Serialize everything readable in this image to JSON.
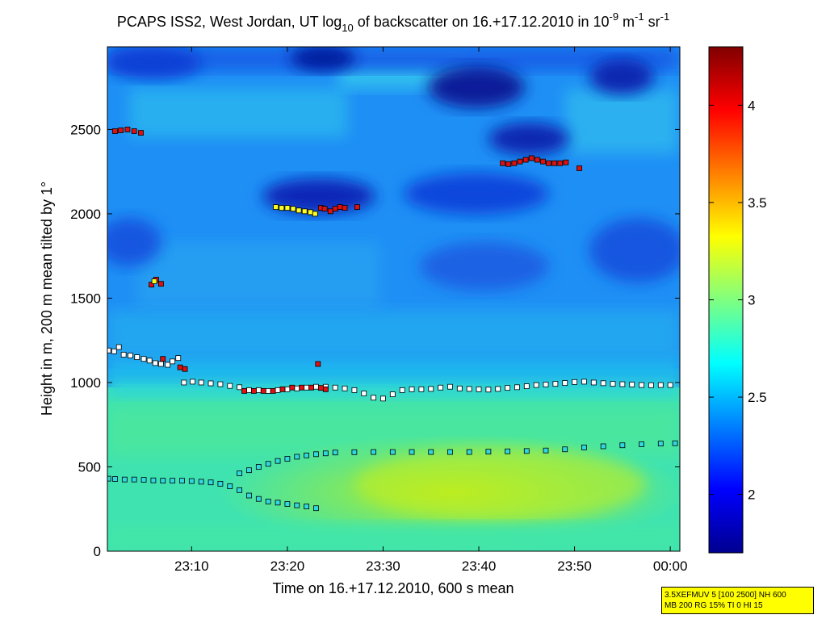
{
  "chart_data": {
    "type": "heatmap",
    "title": {
      "main": "PCAPS ISS2, West Jordan, UT log",
      "sub": "10",
      "middle": " of backscatter on 16.+17.12.2010 in 10",
      "exp1": "-9",
      "unit1": " m",
      "exp2": "-1",
      "unit2": " sr",
      "exp3": "-1"
    },
    "xlabel": "Time on 16.+17.12.2010, 600 s mean",
    "ylabel": "Height in m, 200 m mean tilted by 1°",
    "x_ticks": [
      "23:10",
      "23:20",
      "23:30",
      "23:40",
      "23:50",
      "00:00"
    ],
    "x_tick_minutes": [
      70,
      80,
      90,
      100,
      110,
      120
    ],
    "xlim_minutes": [
      61.2,
      121.0
    ],
    "y_ticks": [
      0,
      500,
      1000,
      1500,
      2000,
      2500
    ],
    "ylim": [
      0,
      2990
    ],
    "colorbar": {
      "ticks": [
        "2",
        "2.5",
        "3",
        "3.5",
        "4"
      ],
      "tick_values": [
        2,
        2.5,
        3,
        3.5,
        4
      ],
      "range": [
        1.7,
        4.3
      ],
      "colormap": "jet"
    },
    "series": [
      {
        "marker": "white-square",
        "points": [
          [
            61.3,
            1190
          ],
          [
            61.9,
            1185
          ],
          [
            62.4,
            1210
          ],
          [
            62.9,
            1165
          ],
          [
            63.6,
            1160
          ],
          [
            64.3,
            1150
          ],
          [
            65.0,
            1140
          ],
          [
            65.6,
            1130
          ],
          [
            66.2,
            1115
          ],
          [
            66.8,
            1110
          ],
          [
            67.5,
            1105
          ],
          [
            68.0,
            1125
          ],
          [
            68.6,
            1145
          ],
          [
            69.2,
            1000
          ],
          [
            70.1,
            1005
          ],
          [
            71.0,
            1000
          ],
          [
            72.0,
            995
          ],
          [
            73.0,
            990
          ],
          [
            74.0,
            980
          ],
          [
            75.0,
            972
          ],
          [
            76.0,
            955
          ],
          [
            77.0,
            955
          ],
          [
            78.0,
            950
          ],
          [
            79.0,
            955
          ],
          [
            80.0,
            960
          ],
          [
            81.0,
            965
          ],
          [
            82.0,
            970
          ],
          [
            83.0,
            975
          ],
          [
            84.0,
            975
          ],
          [
            85.0,
            970
          ],
          [
            86.0,
            965
          ],
          [
            87.0,
            955
          ],
          [
            88.0,
            935
          ],
          [
            89.0,
            910
          ],
          [
            90.0,
            905
          ],
          [
            91.0,
            930
          ],
          [
            92.0,
            955
          ],
          [
            93.0,
            960
          ],
          [
            94.0,
            960
          ],
          [
            95.0,
            962
          ],
          [
            96.0,
            970
          ],
          [
            97.0,
            975
          ],
          [
            98.0,
            965
          ],
          [
            99.0,
            962
          ],
          [
            100.0,
            960
          ],
          [
            101.0,
            958
          ],
          [
            102.0,
            962
          ],
          [
            103.0,
            968
          ],
          [
            104.0,
            972
          ],
          [
            105.0,
            978
          ],
          [
            106.0,
            985
          ],
          [
            107.0,
            988
          ],
          [
            108.0,
            992
          ],
          [
            109.0,
            997
          ],
          [
            110.0,
            1003
          ],
          [
            111.0,
            1005
          ],
          [
            112.0,
            1000
          ],
          [
            113.0,
            996
          ],
          [
            114.0,
            992
          ],
          [
            115.0,
            990
          ],
          [
            116.0,
            988
          ],
          [
            117.0,
            985
          ],
          [
            118.0,
            984
          ],
          [
            119.0,
            985
          ],
          [
            120.0,
            985
          ]
        ]
      },
      {
        "marker": "red-square",
        "points": [
          [
            62.0,
            2490
          ],
          [
            62.6,
            2495
          ],
          [
            63.3,
            2500
          ],
          [
            64.0,
            2490
          ],
          [
            64.7,
            2480
          ],
          [
            65.8,
            1580
          ],
          [
            66.3,
            1610
          ],
          [
            66.8,
            1585
          ],
          [
            67.0,
            1140
          ],
          [
            68.8,
            1090
          ],
          [
            69.3,
            1080
          ],
          [
            75.5,
            950
          ],
          [
            76.5,
            950
          ],
          [
            77.5,
            950
          ],
          [
            78.5,
            950
          ],
          [
            79.5,
            960
          ],
          [
            80.5,
            970
          ],
          [
            81.5,
            970
          ],
          [
            82.5,
            970
          ],
          [
            83.5,
            968
          ],
          [
            84.0,
            960
          ],
          [
            83.2,
            1110
          ],
          [
            83.5,
            2035
          ],
          [
            83.9,
            2030
          ],
          [
            84.5,
            2015
          ],
          [
            85.0,
            2030
          ],
          [
            85.5,
            2040
          ],
          [
            86.0,
            2035
          ],
          [
            87.3,
            2040
          ],
          [
            102.5,
            2300
          ],
          [
            103.1,
            2295
          ],
          [
            103.7,
            2300
          ],
          [
            104.3,
            2310
          ],
          [
            104.9,
            2320
          ],
          [
            105.5,
            2330
          ],
          [
            106.1,
            2320
          ],
          [
            106.7,
            2310
          ],
          [
            107.3,
            2300
          ],
          [
            107.9,
            2300
          ],
          [
            108.5,
            2300
          ],
          [
            109.1,
            2305
          ],
          [
            110.5,
            2270
          ]
        ]
      },
      {
        "marker": "yellow-square",
        "points": [
          [
            78.8,
            2040
          ],
          [
            79.4,
            2035
          ],
          [
            80.0,
            2035
          ],
          [
            80.6,
            2030
          ],
          [
            81.2,
            2020
          ],
          [
            81.8,
            2015
          ],
          [
            82.4,
            2010
          ],
          [
            82.9,
            2000
          ],
          [
            66.1,
            1600
          ]
        ]
      },
      {
        "marker": "cyan-square",
        "points": [
          [
            61.3,
            430
          ],
          [
            62.0,
            428
          ],
          [
            63.0,
            425
          ],
          [
            64.0,
            425
          ],
          [
            65.0,
            423
          ],
          [
            66.0,
            420
          ],
          [
            67.0,
            418
          ],
          [
            68.0,
            418
          ],
          [
            69.0,
            418
          ],
          [
            70.0,
            416
          ],
          [
            71.0,
            412
          ],
          [
            72.0,
            408
          ],
          [
            73.0,
            400
          ],
          [
            74.0,
            385
          ],
          [
            75.0,
            362
          ],
          [
            76.0,
            330
          ],
          [
            77.0,
            310
          ],
          [
            78.0,
            295
          ],
          [
            79.0,
            288
          ],
          [
            80.0,
            280
          ],
          [
            81.0,
            272
          ],
          [
            82.0,
            265
          ],
          [
            83.0,
            255
          ],
          [
            75.0,
            462
          ],
          [
            76.0,
            480
          ],
          [
            77.0,
            500
          ],
          [
            78.0,
            518
          ],
          [
            79.0,
            535
          ],
          [
            80.0,
            548
          ],
          [
            81.0,
            560
          ],
          [
            82.0,
            568
          ],
          [
            83.0,
            575
          ],
          [
            84.0,
            580
          ],
          [
            85.0,
            585
          ],
          [
            87.0,
            587
          ],
          [
            89.0,
            588
          ],
          [
            91.0,
            588
          ],
          [
            93.0,
            588
          ],
          [
            95.0,
            588
          ],
          [
            97.0,
            588
          ],
          [
            99.0,
            588
          ],
          [
            101.0,
            590
          ],
          [
            103.0,
            592
          ],
          [
            105.0,
            594
          ],
          [
            107.0,
            597
          ],
          [
            109.0,
            604
          ],
          [
            111.0,
            615
          ],
          [
            113.0,
            622
          ],
          [
            115.0,
            628
          ],
          [
            117.0,
            634
          ],
          [
            119.0,
            638
          ],
          [
            120.5,
            640
          ]
        ]
      }
    ],
    "annotation": [
      "3.5XEFMUV 5 [100 2500] NH 600",
      "MB 200 RG 15% TI 0 HI 15"
    ]
  }
}
